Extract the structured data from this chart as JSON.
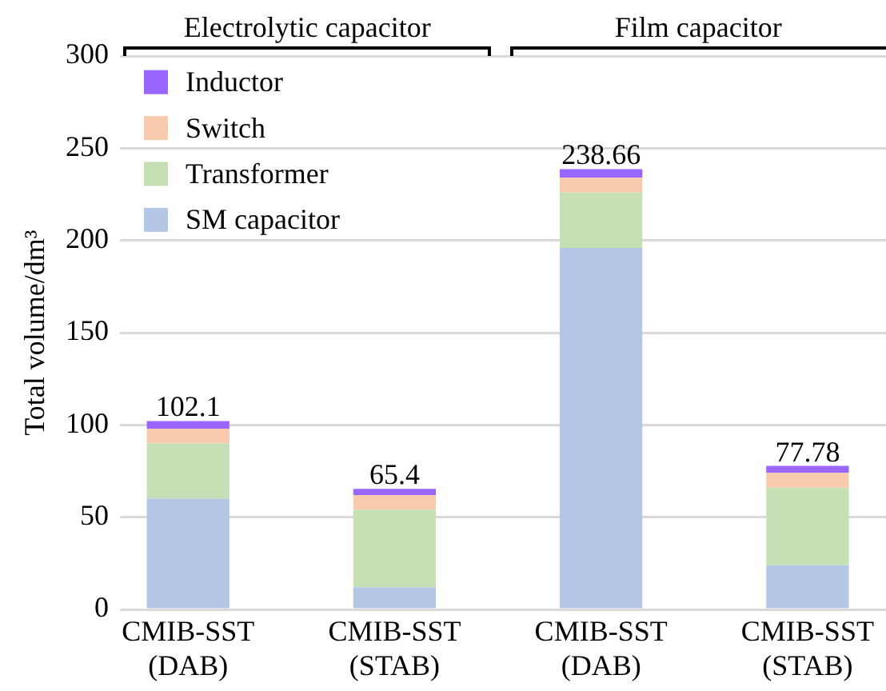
{
  "chart_data": {
    "type": "bar",
    "stacked": true,
    "categories": [
      "CMIB-SST\n(DAB)",
      "CMIB-SST\n(STAB)",
      "CMIB-SST\n(DAB)",
      "CMIB-SST\n(STAB)"
    ],
    "series": [
      {
        "name": "SM capacitor",
        "color": "#b4c7e7",
        "values": [
          60,
          12,
          196,
          24
        ]
      },
      {
        "name": "Transformer",
        "color": "#c5e0b4",
        "values": [
          30,
          42,
          30,
          42
        ]
      },
      {
        "name": "Switch",
        "color": "#f8cbad",
        "values": [
          8,
          8,
          8,
          8
        ]
      },
      {
        "name": "Inductor",
        "color": "#9966ff",
        "values": [
          4.1,
          3.4,
          4.66,
          3.78
        ]
      }
    ],
    "totals": [
      "102.1",
      "65.4",
      "238.66",
      "77.78"
    ],
    "ylabel": "Total volume/dm³",
    "ylim": [
      0,
      300
    ],
    "yticks": [
      0,
      50,
      100,
      150,
      200,
      250,
      300
    ],
    "grid": "y",
    "legend": "top left",
    "annotations": [
      "Electrolytic capacitor",
      "Film capacitor"
    ]
  }
}
